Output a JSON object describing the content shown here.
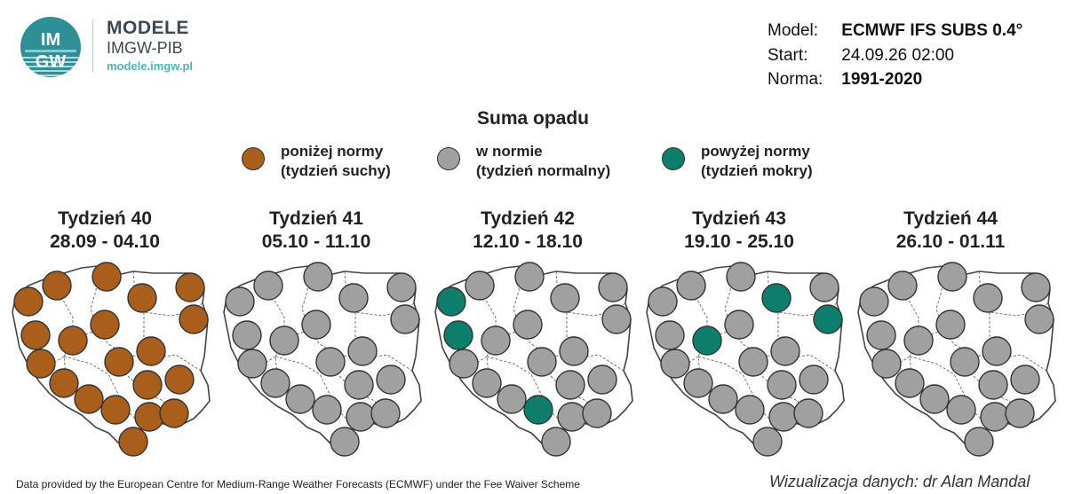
{
  "header": {
    "brand_title": "MODELE",
    "brand_sub": "IMGW-PIB",
    "brand_url": "modele.imgw.pl",
    "logo_text_top": "IM",
    "logo_text_bottom": "GW",
    "model_label": "Model:",
    "model_value": "ECMWF IFS SUBS 0.4°",
    "start_label": "Start:",
    "start_value": "24.09.26 02:00",
    "norm_label": "Norma:",
    "norm_value": "1991-2020"
  },
  "legend": {
    "title": "Suma opadu",
    "items": [
      {
        "line1": "poniżej normy",
        "line2": "(tydzień suchy)",
        "color": "#a95e1c"
      },
      {
        "line1": "w normie",
        "line2": "(tydzień normalny)",
        "color": "#a0a0a0"
      },
      {
        "line1": "powyżej normy",
        "line2": "(tydzień mokry)",
        "color": "#0e7e6c"
      }
    ]
  },
  "colors": {
    "below": "#a95e1c",
    "normal": "#a0a0a0",
    "above": "#0e7e6c"
  },
  "weeks": [
    {
      "title": "Tydzień 40",
      "dates": "28.09 - 04.10",
      "stations": [
        "below",
        "below",
        "below",
        "below",
        "below",
        "below",
        "below",
        "below",
        "below",
        "below",
        "below",
        "below",
        "below",
        "below",
        "below",
        "below",
        "below",
        "below",
        "below",
        "below",
        "below",
        "below"
      ]
    },
    {
      "title": "Tydzień 41",
      "dates": "05.10 - 11.10",
      "stations": [
        "normal",
        "normal",
        "normal",
        "normal",
        "normal",
        "normal",
        "normal",
        "normal",
        "normal",
        "normal",
        "normal",
        "normal",
        "normal",
        "normal",
        "normal",
        "normal",
        "normal",
        "normal",
        "normal",
        "normal",
        "normal",
        "normal"
      ]
    },
    {
      "title": "Tydzień 42",
      "dates": "12.10 - 18.10",
      "stations": [
        "normal",
        "normal",
        "normal",
        "normal",
        "above",
        "normal",
        "normal",
        "above",
        "normal",
        "normal",
        "normal",
        "normal",
        "normal",
        "normal",
        "normal",
        "normal",
        "above",
        "normal",
        "normal",
        "normal",
        "normal",
        "normal"
      ]
    },
    {
      "title": "Tydzień 43",
      "dates": "19.10 - 25.10",
      "stations": [
        "normal",
        "normal",
        "above",
        "normal",
        "normal",
        "normal",
        "above",
        "normal",
        "above",
        "normal",
        "normal",
        "normal",
        "normal",
        "normal",
        "normal",
        "normal",
        "normal",
        "normal",
        "normal",
        "normal",
        "normal",
        "normal"
      ]
    },
    {
      "title": "Tydzień 44",
      "dates": "26.10 - 01.11",
      "stations": [
        "normal",
        "normal",
        "normal",
        "normal",
        "normal",
        "normal",
        "normal",
        "normal",
        "normal",
        "normal",
        "normal",
        "normal",
        "normal",
        "normal",
        "normal",
        "normal",
        "normal",
        "normal",
        "normal",
        "normal",
        "normal",
        "normal"
      ]
    }
  ],
  "footer": {
    "left": "Data provided by the European Centre for Medium-Range Weather Forecasts (ECMWF) under the Fee Waiver Scheme",
    "right": "Wizualizacja danych: dr Alan Mandal"
  }
}
